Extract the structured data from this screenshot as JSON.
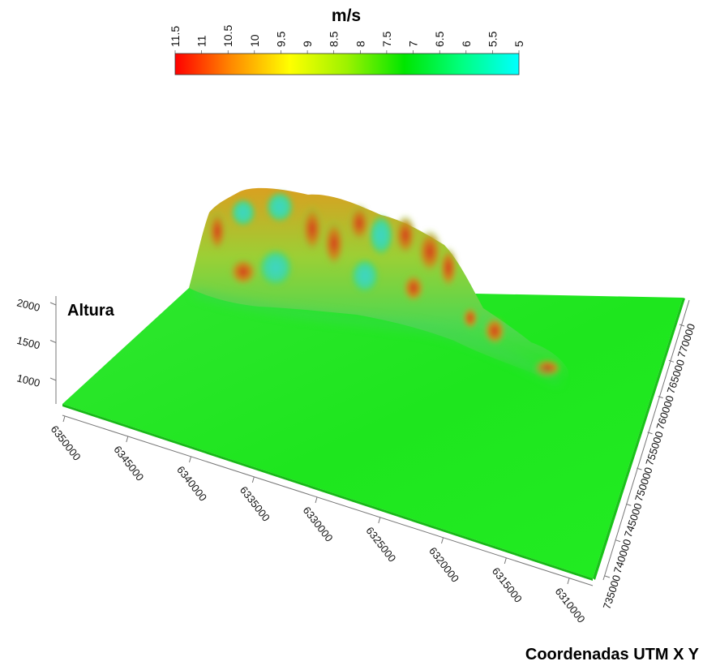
{
  "chart_data": {
    "type": "surface3d",
    "colorbar": {
      "title": "m/s",
      "ticks": [
        "11.5",
        "11",
        "10.5",
        "10",
        "9.5",
        "9",
        "8.5",
        "8",
        "7.5",
        "7",
        "6.5",
        "6",
        "5.5",
        "5"
      ],
      "range": [
        11.5,
        5
      ],
      "colors": [
        "#ff0000",
        "#ff8c00",
        "#ffff00",
        "#9cf200",
        "#00e600",
        "#00ff80",
        "#00ffff"
      ]
    },
    "z_axis": {
      "label": "Altura",
      "ticks": [
        "2000",
        "1500",
        "1000"
      ],
      "values": [
        2000,
        1500,
        1000
      ]
    },
    "x_axis": {
      "ticks": [
        "6350000",
        "6345000",
        "6340000",
        "6335000",
        "6330000",
        "6325000",
        "6320000",
        "6315000",
        "6310000"
      ],
      "values": [
        6350000,
        6345000,
        6340000,
        6335000,
        6330000,
        6325000,
        6320000,
        6315000,
        6310000
      ]
    },
    "y_axis": {
      "ticks": [
        "735000",
        "740000",
        "745000",
        "750000",
        "755000",
        "760000",
        "765000",
        "770000"
      ],
      "values": [
        735000,
        740000,
        745000,
        750000,
        755000,
        760000,
        765000,
        770000
      ]
    },
    "footer_label": "Coordenadas UTM X Y",
    "surface_base_color": "#1ee61e"
  }
}
